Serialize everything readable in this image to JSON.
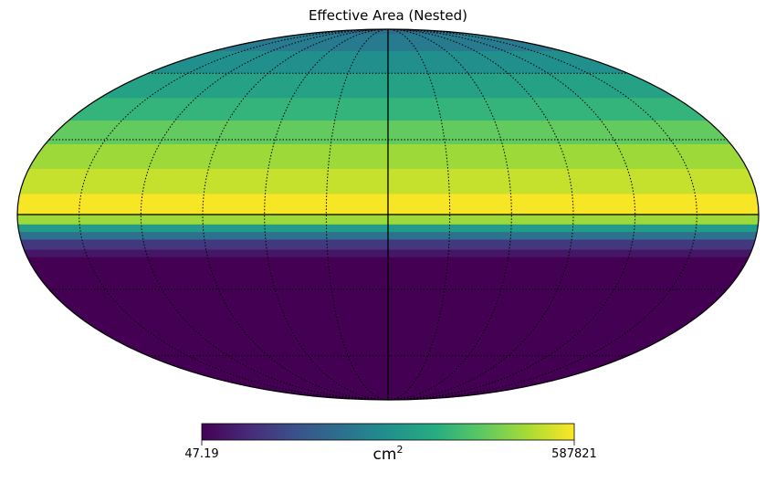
{
  "chart_data": {
    "type": "heatmap",
    "projection": "mollweide",
    "title": "Effective Area (Nested)",
    "colormap": "viridis",
    "colorbar": {
      "min_label": "47.19",
      "max_label": "587821",
      "unit_base": "cm",
      "unit_exp": "2",
      "min": 47.19,
      "max": 587821
    },
    "graticule": {
      "meridian_step_deg": 30,
      "parallel_step_deg": 30,
      "style": "dotted"
    },
    "bands": [
      {
        "lat_from": 90,
        "lat_to": 84,
        "value": 0.36
      },
      {
        "lat_from": 84,
        "lat_to": 72,
        "value": 0.42
      },
      {
        "lat_from": 72,
        "lat_to": 60,
        "value": 0.5
      },
      {
        "lat_from": 60,
        "lat_to": 48,
        "value": 0.58
      },
      {
        "lat_from": 48,
        "lat_to": 38,
        "value": 0.66
      },
      {
        "lat_from": 38,
        "lat_to": 28,
        "value": 0.76
      },
      {
        "lat_from": 28,
        "lat_to": 18,
        "value": 0.86
      },
      {
        "lat_from": 18,
        "lat_to": 8,
        "value": 0.92
      },
      {
        "lat_from": 8,
        "lat_to": 0,
        "value": 0.99
      },
      {
        "lat_from": 0,
        "lat_to": -4,
        "value": 0.86
      },
      {
        "lat_from": -4,
        "lat_to": -7,
        "value": 0.55
      },
      {
        "lat_from": -7,
        "lat_to": -10,
        "value": 0.38
      },
      {
        "lat_from": -10,
        "lat_to": -14,
        "value": 0.17
      },
      {
        "lat_from": -14,
        "lat_to": -17,
        "value": 0.06
      },
      {
        "lat_from": -17,
        "lat_to": -90,
        "value": 0.0
      }
    ]
  }
}
